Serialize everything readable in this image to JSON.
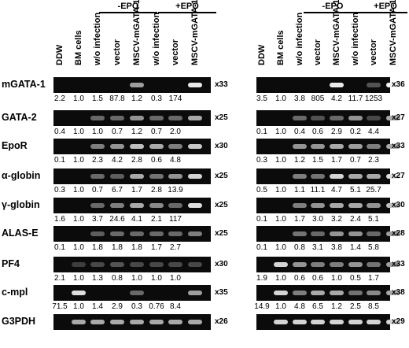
{
  "columns": [
    "DDW",
    "BM cells",
    "w/o infection",
    "vector",
    "MSCV-mGATA-1",
    "w/o infection",
    "vector",
    "MSCV-mGATA-1"
  ],
  "groups": {
    "minus": "-EPO",
    "plus": "+EPO"
  },
  "rows": [
    "mGATA-1",
    "GATA-2",
    "EpoR",
    "α-globin",
    "γ-globin",
    "ALAS-E",
    "PF4",
    "c-mpl",
    "G3PDH"
  ],
  "left": {
    "multipliers": [
      "x33",
      "x25",
      "x30",
      "x25",
      "x25",
      "x25",
      "x30",
      "x35",
      "x26"
    ],
    "values": [
      [
        "2.2",
        "1.0",
        "1.5",
        "87.8",
        "1.2",
        "0.3",
        "174"
      ],
      [
        "0.4",
        "1.0",
        "1.0",
        "0.7",
        "1.2",
        "0.7",
        "2.0"
      ],
      [
        "0.1",
        "1.0",
        "2.3",
        "4.2",
        "2.8",
        "0.6",
        "4.8"
      ],
      [
        "0.3",
        "1.0",
        "0.7",
        "6.7",
        "1.7",
        "2.8",
        "13.9"
      ],
      [
        "1.6",
        "1.0",
        "3.7",
        "24.6",
        "4.1",
        "2.1",
        "117"
      ],
      [
        "0.1",
        "1.0",
        "1.8",
        "1.8",
        "1.8",
        "1.7",
        "2.7"
      ],
      [
        "2.1",
        "1.0",
        "1.3",
        "0.8",
        "1.0",
        "1.0",
        "1.0"
      ],
      [
        "71.5",
        "1.0",
        "1.4",
        "2.9",
        "0.3",
        "0.76",
        "8.4"
      ],
      []
    ]
  },
  "right": {
    "multipliers": [
      "x36",
      "x27",
      "x33",
      "x27",
      "x30",
      "x28",
      "x33",
      "x38",
      "x29"
    ],
    "values": [
      [
        "3.5",
        "1.0",
        "3.8",
        "805",
        "4.2",
        "11.7",
        "1253"
      ],
      [
        "0.1",
        "1.0",
        "0.4",
        "0.6",
        "2.9",
        "0.2",
        "4.4"
      ],
      [
        "0.3",
        "1.0",
        "1.2",
        "1.5",
        "1.7",
        "0.7",
        "2.3"
      ],
      [
        "0.5",
        "1.0",
        "1.1",
        "11.1",
        "4.7",
        "5.1",
        "25.7"
      ],
      [
        "0.1",
        "1.0",
        "1.7",
        "3.0",
        "3.2",
        "2.4",
        "5.1"
      ],
      [
        "0.1",
        "1.0",
        "0.8",
        "3.1",
        "3.8",
        "1.4",
        "5.8"
      ],
      [
        "1.9",
        "1.0",
        "0.6",
        "0.6",
        "1.0",
        "0.5",
        "1.7"
      ],
      [
        "14.9",
        "1.0",
        "4.8",
        "6.5",
        "1.2",
        "2.5",
        "8.5"
      ],
      []
    ]
  }
}
